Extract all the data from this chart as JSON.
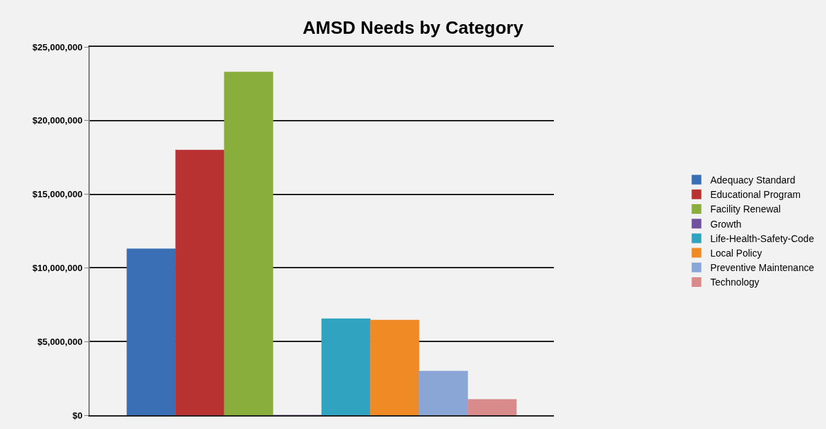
{
  "chart_data": {
    "type": "bar",
    "title": "AMSD Needs by Category",
    "categories": [
      null
    ],
    "series": [
      {
        "name": "Adequacy Standard",
        "color": "#3a6fb5",
        "values": [
          11300000
        ]
      },
      {
        "name": "Educational Program",
        "color": "#b83232",
        "values": [
          18000000
        ]
      },
      {
        "name": "Facility Renewal",
        "color": "#8aae3c",
        "values": [
          23300000
        ]
      },
      {
        "name": "Growth",
        "color": "#7052a0",
        "values": [
          0
        ]
      },
      {
        "name": "Life-Health-Safety-Code",
        "color": "#2fa3bf",
        "values": [
          6550000
        ]
      },
      {
        "name": "Local Policy",
        "color": "#f08a25",
        "values": [
          6460000
        ]
      },
      {
        "name": "Preventive Maintenance",
        "color": "#8aa6d6",
        "values": [
          3000000
        ]
      },
      {
        "name": "Technology",
        "color": "#d98a8a",
        "values": [
          1080000
        ]
      }
    ],
    "ylim": [
      0,
      25000000
    ],
    "yticks": [
      {
        "value": 0,
        "label": "$0"
      },
      {
        "value": 5000000,
        "label": "$5,000,000"
      },
      {
        "value": 10000000,
        "label": "$10,000,000"
      },
      {
        "value": 15000000,
        "label": "$15,000,000"
      },
      {
        "value": 20000000,
        "label": "$20,000,000"
      },
      {
        "value": 25000000,
        "label": "$25,000,000"
      }
    ],
    "grid": "y",
    "legend": "right"
  }
}
